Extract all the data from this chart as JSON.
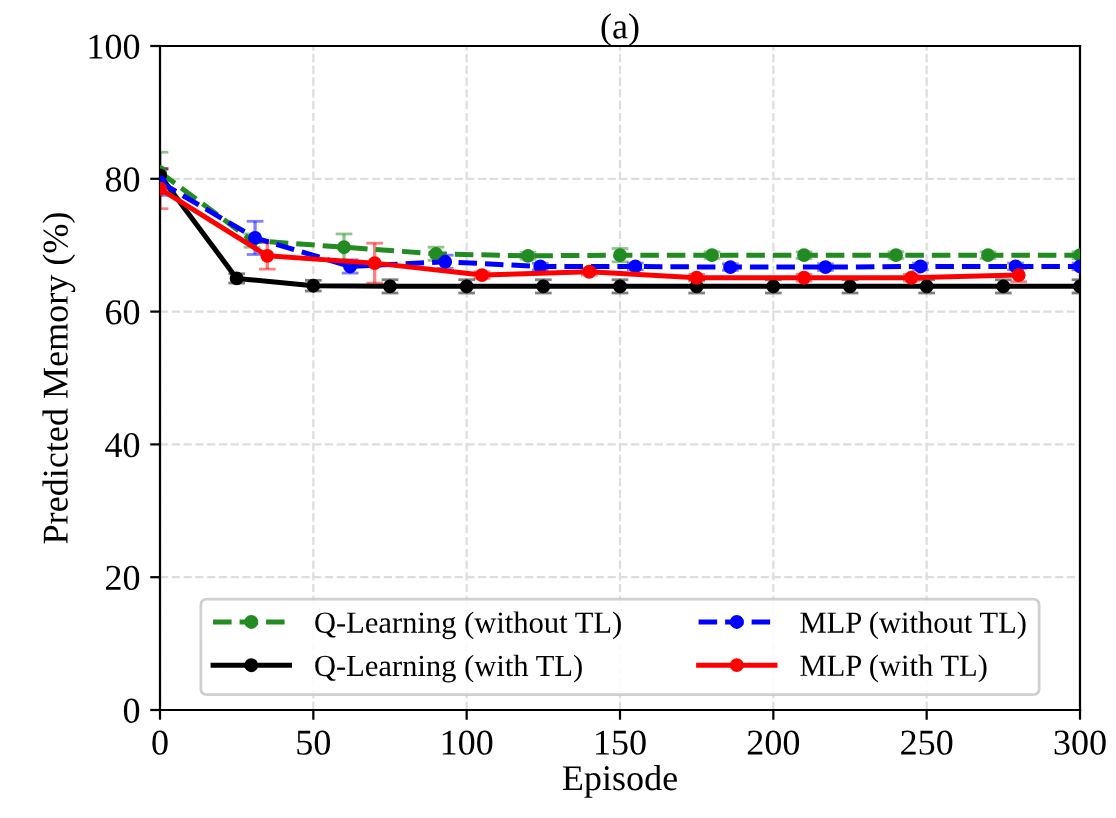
{
  "chart_data": {
    "type": "line",
    "title": "(a)",
    "xlabel": "Episode",
    "ylabel": "Predicted Memory (%)",
    "xlim": [
      0,
      300
    ],
    "xticks": [
      0,
      50,
      100,
      150,
      200,
      250,
      300
    ],
    "ylim": [
      0,
      100
    ],
    "yticks": [
      0,
      20,
      40,
      60,
      80,
      100
    ],
    "grid": true,
    "legend": "bottom",
    "marker": "circle",
    "series": [
      {
        "name": "Q-Learning (without TL)",
        "color": "#228b22",
        "line_style": "dashed",
        "x": [
          0,
          30,
          60,
          90,
          120,
          150,
          180,
          210,
          240,
          270,
          300
        ],
        "values": [
          81,
          70.7,
          69.7,
          68.7,
          68.4,
          68.5,
          68.5,
          68.5,
          68.5,
          68.5,
          68.5
        ],
        "errors": [
          3,
          1,
          2,
          1,
          0.5,
          1,
          0.5,
          0.5,
          0.5,
          0.5,
          0.5
        ]
      },
      {
        "name": "Q-Learning (with TL)",
        "color": "#000000",
        "line_style": "solid",
        "x": [
          0,
          25,
          50,
          75,
          100,
          125,
          150,
          175,
          200,
          225,
          250,
          275,
          300
        ],
        "values": [
          80.5,
          65,
          63.9,
          63.8,
          63.8,
          63.8,
          63.8,
          63.8,
          63.8,
          63.8,
          63.8,
          63.8,
          63.8
        ],
        "errors": [
          1,
          0.7,
          0.8,
          1,
          1,
          1,
          1,
          1,
          1,
          1,
          1,
          1,
          1
        ]
      },
      {
        "name": "MLP (without TL)",
        "color": "#0000ff",
        "line_style": "dashed",
        "x": [
          0,
          31,
          62,
          93,
          124,
          155,
          186,
          217,
          248,
          279,
          300
        ],
        "values": [
          79.5,
          71.1,
          66.8,
          67.5,
          66.8,
          66.8,
          66.7,
          66.7,
          66.8,
          66.8,
          66.8
        ],
        "errors": [
          2,
          2.5,
          1,
          1,
          0.5,
          0.5,
          0.5,
          0.5,
          0.5,
          0.5,
          0.5
        ]
      },
      {
        "name": "MLP (with TL)",
        "color": "#ff0000",
        "line_style": "solid",
        "x": [
          0,
          35,
          70,
          105,
          140,
          175,
          210,
          245,
          280
        ],
        "values": [
          78.5,
          68.4,
          67.3,
          65.5,
          66,
          65.1,
          65.1,
          65.1,
          65.5
        ],
        "errors": [
          3,
          2,
          3,
          0.5,
          0.5,
          0.5,
          0.5,
          0.5,
          1
        ]
      }
    ]
  }
}
